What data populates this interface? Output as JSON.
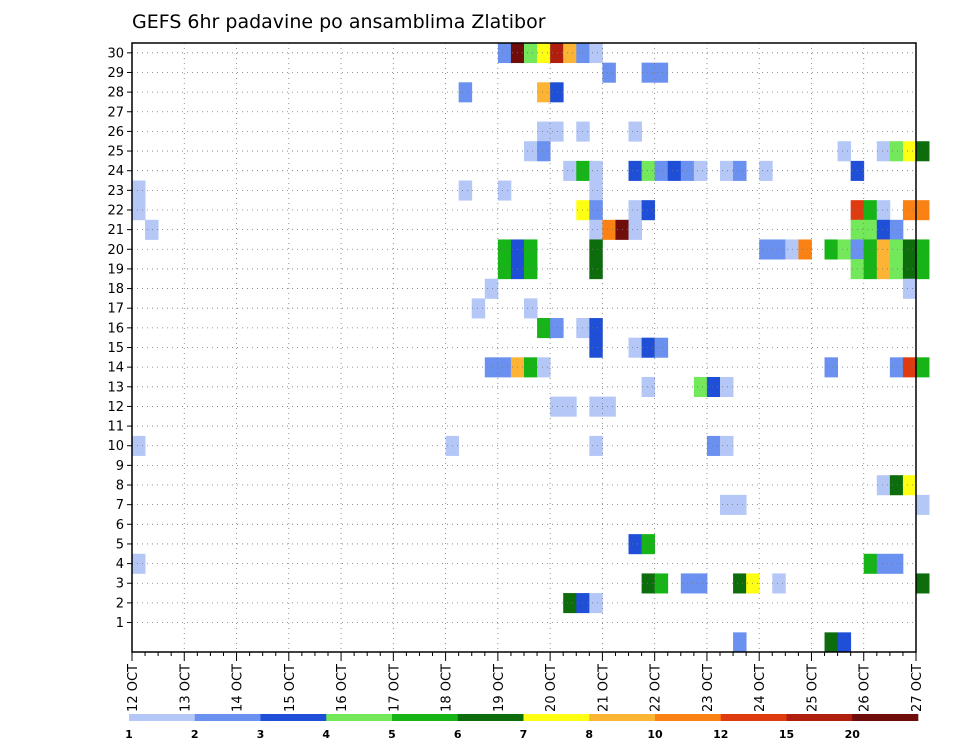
{
  "chart_data": {
    "type": "heatmap",
    "title": "GEFS 6hr padavine po ansamblima Zlatibor",
    "xlabel": "",
    "ylabel": "",
    "grid": true,
    "x_ticks": [
      "12 OCT",
      "13 OCT",
      "14 OCT",
      "15 OCT",
      "16 OCT",
      "17 OCT",
      "18 OCT",
      "19 OCT",
      "20 OCT",
      "21 OCT",
      "22 OCT",
      "23 OCT",
      "24 OCT",
      "25 OCT",
      "26 OCT",
      "27 OCT"
    ],
    "y_ticks": [
      "1",
      "2",
      "3",
      "4",
      "5",
      "6",
      "7",
      "8",
      "9",
      "10",
      "11",
      "12",
      "13",
      "14",
      "15",
      "16",
      "17",
      "18",
      "19",
      "20",
      "21",
      "22",
      "23",
      "24",
      "25",
      "26",
      "27",
      "28",
      "29",
      "30"
    ],
    "time_step_hours": 6,
    "legend": {
      "placement": "bottom",
      "thresholds": [
        "1",
        "2",
        "3",
        "4",
        "5",
        "6",
        "7",
        "8",
        "10",
        "12",
        "15",
        "20"
      ],
      "colors": [
        "#b4c7f7",
        "#6a91f0",
        "#1f4fd6",
        "#72e85a",
        "#16b416",
        "#0d6d0d",
        "#ffff14",
        "#fdb435",
        "#fa8214",
        "#de3c10",
        "#b01e0e",
        "#6f0d0a"
      ]
    },
    "cells": [
      {
        "member": 30,
        "steps": [
          {
            "s": 28,
            "c": 2
          },
          {
            "s": 29,
            "c": 12
          },
          {
            "s": 30,
            "c": 4
          },
          {
            "s": 31,
            "c": 7
          },
          {
            "s": 32,
            "c": 11
          },
          {
            "s": 33,
            "c": 8
          },
          {
            "s": 34,
            "c": 2
          },
          {
            "s": 35,
            "c": 1
          }
        ]
      },
      {
        "member": 29,
        "steps": [
          {
            "s": 36,
            "c": 2
          },
          {
            "s": 39,
            "c": 2
          },
          {
            "s": 40,
            "c": 2
          }
        ]
      },
      {
        "member": 28,
        "steps": [
          {
            "s": 25,
            "c": 2
          },
          {
            "s": 31,
            "c": 8
          },
          {
            "s": 32,
            "c": 3
          }
        ]
      },
      {
        "member": 26,
        "steps": [
          {
            "s": 31,
            "c": 1
          },
          {
            "s": 32,
            "c": 1
          },
          {
            "s": 34,
            "c": 1
          },
          {
            "s": 38,
            "c": 1
          }
        ]
      },
      {
        "member": 25,
        "steps": [
          {
            "s": 30,
            "c": 1
          },
          {
            "s": 31,
            "c": 2
          },
          {
            "s": 54,
            "c": 1
          },
          {
            "s": 57,
            "c": 1
          },
          {
            "s": 58,
            "c": 4
          },
          {
            "s": 59,
            "c": 7
          },
          {
            "s": 60,
            "c": 6
          }
        ]
      },
      {
        "member": 24,
        "steps": [
          {
            "s": 33,
            "c": 1
          },
          {
            "s": 34,
            "c": 5
          },
          {
            "s": 35,
            "c": 1
          },
          {
            "s": 38,
            "c": 3
          },
          {
            "s": 39,
            "c": 4
          },
          {
            "s": 40,
            "c": 2
          },
          {
            "s": 41,
            "c": 3
          },
          {
            "s": 42,
            "c": 2
          },
          {
            "s": 43,
            "c": 1
          },
          {
            "s": 45,
            "c": 1
          },
          {
            "s": 46,
            "c": 2
          },
          {
            "s": 48,
            "c": 1
          },
          {
            "s": 55,
            "c": 3
          }
        ]
      },
      {
        "member": 23,
        "steps": [
          {
            "s": 0,
            "c": 1
          },
          {
            "s": 25,
            "c": 1
          },
          {
            "s": 28,
            "c": 1
          },
          {
            "s": 35,
            "c": 1
          }
        ]
      },
      {
        "member": 22,
        "steps": [
          {
            "s": 0,
            "c": 1
          },
          {
            "s": 34,
            "c": 7
          },
          {
            "s": 35,
            "c": 2
          },
          {
            "s": 38,
            "c": 1
          },
          {
            "s": 39,
            "c": 3
          },
          {
            "s": 55,
            "c": 10
          },
          {
            "s": 56,
            "c": 5
          },
          {
            "s": 57,
            "c": 1
          },
          {
            "s": 59,
            "c": 9
          },
          {
            "s": 60,
            "c": 9
          }
        ]
      },
      {
        "member": 21,
        "steps": [
          {
            "s": 1,
            "c": 1
          },
          {
            "s": 35,
            "c": 1
          },
          {
            "s": 36,
            "c": 9
          },
          {
            "s": 37,
            "c": 12
          },
          {
            "s": 38,
            "c": 1
          },
          {
            "s": 55,
            "c": 4
          },
          {
            "s": 56,
            "c": 4
          },
          {
            "s": 57,
            "c": 3
          },
          {
            "s": 58,
            "c": 2
          }
        ]
      },
      {
        "member": 20,
        "steps": [
          {
            "s": 28,
            "c": 5
          },
          {
            "s": 29,
            "c": 3
          },
          {
            "s": 30,
            "c": 5
          },
          {
            "s": 35,
            "c": 6
          },
          {
            "s": 48,
            "c": 2
          },
          {
            "s": 49,
            "c": 2
          },
          {
            "s": 50,
            "c": 1
          },
          {
            "s": 51,
            "c": 9
          },
          {
            "s": 53,
            "c": 5
          },
          {
            "s": 54,
            "c": 4
          },
          {
            "s": 55,
            "c": 2
          },
          {
            "s": 56,
            "c": 5
          },
          {
            "s": 57,
            "c": 8
          },
          {
            "s": 58,
            "c": 4
          },
          {
            "s": 59,
            "c": 6
          },
          {
            "s": 60,
            "c": 5
          }
        ]
      },
      {
        "member": 19,
        "steps": [
          {
            "s": 28,
            "c": 5
          },
          {
            "s": 29,
            "c": 3
          },
          {
            "s": 30,
            "c": 5
          },
          {
            "s": 35,
            "c": 6
          },
          {
            "s": 55,
            "c": 4
          },
          {
            "s": 56,
            "c": 5
          },
          {
            "s": 57,
            "c": 8
          },
          {
            "s": 58,
            "c": 4
          },
          {
            "s": 59,
            "c": 6
          },
          {
            "s": 60,
            "c": 5
          }
        ]
      },
      {
        "member": 18,
        "steps": [
          {
            "s": 27,
            "c": 1
          },
          {
            "s": 59,
            "c": 1
          }
        ]
      },
      {
        "member": 17,
        "steps": [
          {
            "s": 26,
            "c": 1
          },
          {
            "s": 30,
            "c": 1
          }
        ]
      },
      {
        "member": 16,
        "steps": [
          {
            "s": 31,
            "c": 5
          },
          {
            "s": 32,
            "c": 2
          },
          {
            "s": 34,
            "c": 1
          },
          {
            "s": 35,
            "c": 3
          }
        ]
      },
      {
        "member": 15,
        "steps": [
          {
            "s": 35,
            "c": 3
          },
          {
            "s": 38,
            "c": 1
          },
          {
            "s": 39,
            "c": 3
          },
          {
            "s": 40,
            "c": 2
          }
        ]
      },
      {
        "member": 14,
        "steps": [
          {
            "s": 27,
            "c": 2
          },
          {
            "s": 28,
            "c": 2
          },
          {
            "s": 29,
            "c": 8
          },
          {
            "s": 30,
            "c": 5
          },
          {
            "s": 31,
            "c": 1
          },
          {
            "s": 53,
            "c": 2
          },
          {
            "s": 58,
            "c": 2
          },
          {
            "s": 59,
            "c": 10
          },
          {
            "s": 60,
            "c": 5
          }
        ]
      },
      {
        "member": 13,
        "steps": [
          {
            "s": 39,
            "c": 1
          },
          {
            "s": 43,
            "c": 4
          },
          {
            "s": 44,
            "c": 3
          },
          {
            "s": 45,
            "c": 1
          }
        ]
      },
      {
        "member": 12,
        "steps": [
          {
            "s": 32,
            "c": 1
          },
          {
            "s": 33,
            "c": 1
          },
          {
            "s": 35,
            "c": 1
          },
          {
            "s": 36,
            "c": 1
          }
        ]
      },
      {
        "member": 10,
        "steps": [
          {
            "s": 0,
            "c": 1
          },
          {
            "s": 24,
            "c": 1
          },
          {
            "s": 35,
            "c": 1
          },
          {
            "s": 44,
            "c": 2
          },
          {
            "s": 45,
            "c": 1
          }
        ]
      },
      {
        "member": 8,
        "steps": [
          {
            "s": 57,
            "c": 1
          },
          {
            "s": 58,
            "c": 6
          },
          {
            "s": 59,
            "c": 7
          }
        ]
      },
      {
        "member": 7,
        "steps": [
          {
            "s": 45,
            "c": 1
          },
          {
            "s": 46,
            "c": 1
          },
          {
            "s": 60,
            "c": 1
          }
        ]
      },
      {
        "member": 5,
        "steps": [
          {
            "s": 38,
            "c": 3
          },
          {
            "s": 39,
            "c": 5
          }
        ]
      },
      {
        "member": 4,
        "steps": [
          {
            "s": 0,
            "c": 1
          },
          {
            "s": 56,
            "c": 5
          },
          {
            "s": 57,
            "c": 2
          },
          {
            "s": 58,
            "c": 2
          }
        ]
      },
      {
        "member": 3,
        "steps": [
          {
            "s": 39,
            "c": 6
          },
          {
            "s": 40,
            "c": 5
          },
          {
            "s": 42,
            "c": 2
          },
          {
            "s": 43,
            "c": 2
          },
          {
            "s": 46,
            "c": 6
          },
          {
            "s": 47,
            "c": 7
          },
          {
            "s": 49,
            "c": 1
          },
          {
            "s": 60,
            "c": 6
          }
        ]
      },
      {
        "member": 2,
        "steps": [
          {
            "s": 33,
            "c": 6
          },
          {
            "s": 34,
            "c": 3
          },
          {
            "s": 35,
            "c": 1
          }
        ]
      },
      {
        "member": 0,
        "steps": [
          {
            "s": 46,
            "c": 2
          },
          {
            "s": 53,
            "c": 6
          },
          {
            "s": 54,
            "c": 3
          }
        ]
      }
    ]
  }
}
